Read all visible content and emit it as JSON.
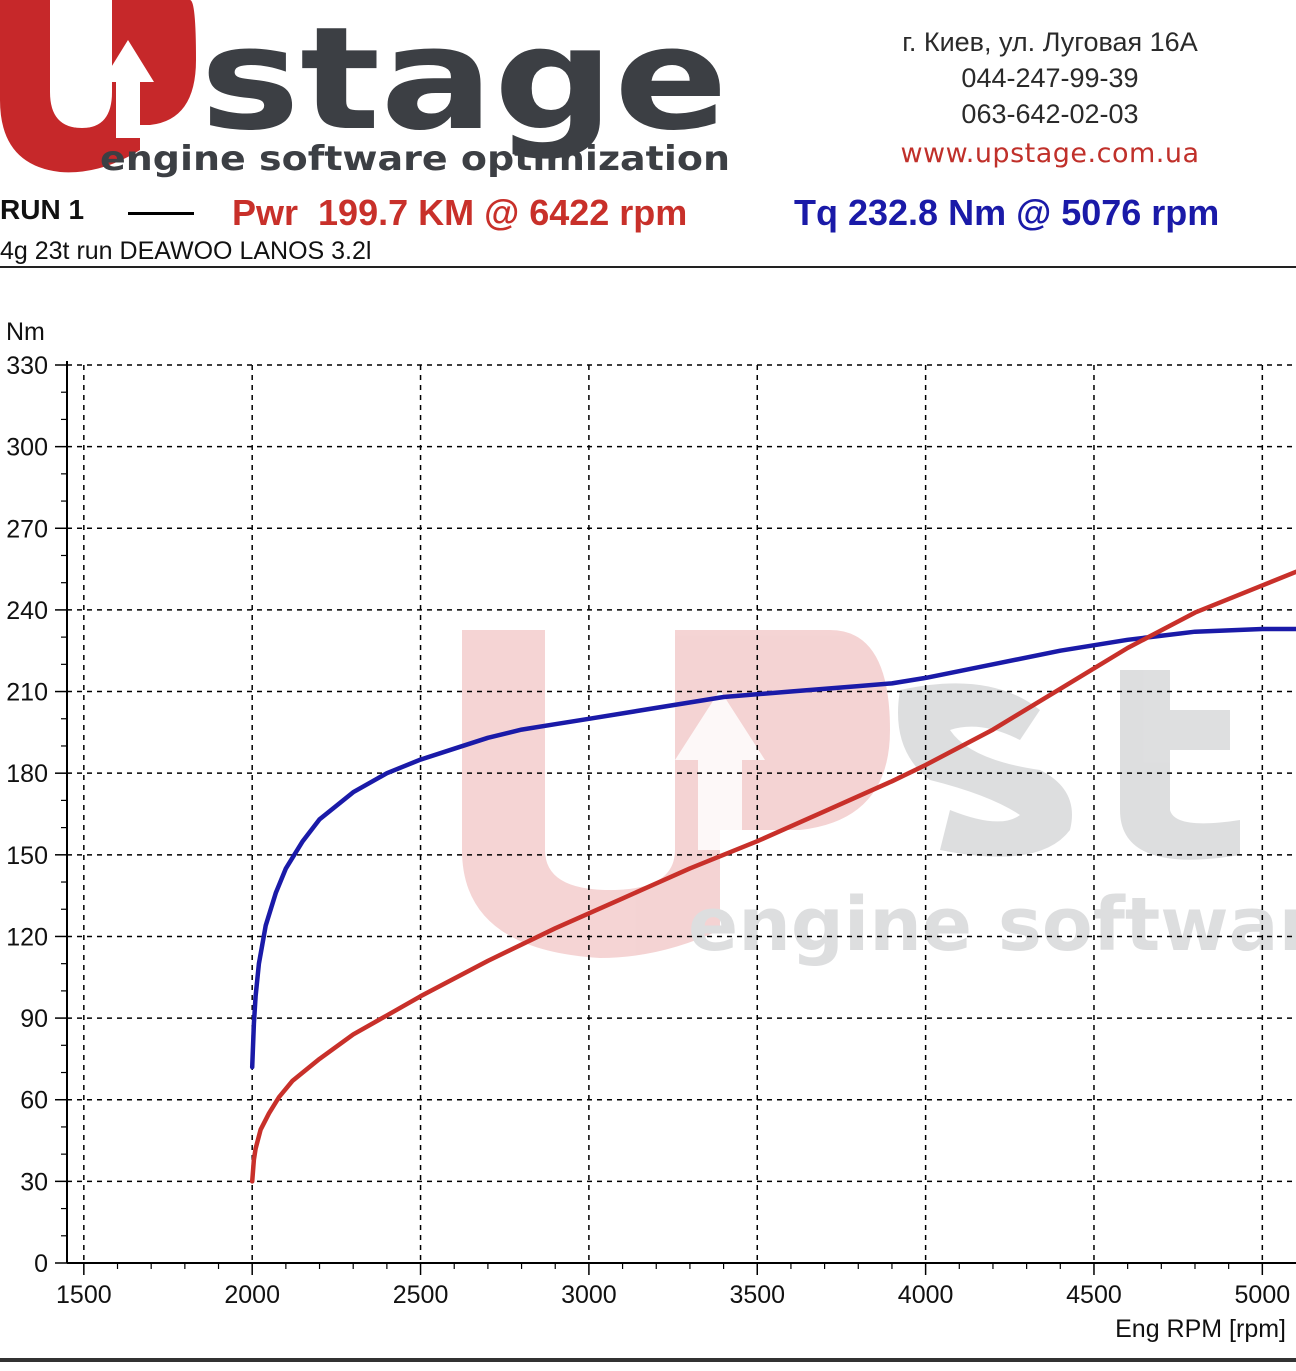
{
  "logo": {
    "brand_word": "stage",
    "tagline": "engine software optimization",
    "colors": {
      "brand_red": "#c6282a",
      "brand_gray": "#3c3f44"
    }
  },
  "contact": {
    "address": "г. Киев, ул. Луговая 16А",
    "phone1": "044-247-99-39",
    "phone2": "063-642-02-03",
    "website": "www.upstage.com.ua"
  },
  "run": {
    "label": "RUN 1",
    "power_summary": "Pwr  199.7 KM @ 6422 rpm",
    "torque_summary": "Tq 232.8 Nm @ 5076 rpm",
    "description": "4g 23t run DEAWOO LANOS 3.2l"
  },
  "chart_data": {
    "type": "line",
    "ylabel": "Nm",
    "xlabel": "Eng RPM [rpm]",
    "xlim": [
      1450,
      5100
    ],
    "ylim": [
      0,
      330
    ],
    "x_ticks": [
      1500,
      2000,
      2500,
      3000,
      3500,
      4000,
      4500,
      5000
    ],
    "y_ticks": [
      0,
      30,
      60,
      90,
      120,
      150,
      180,
      210,
      240,
      270,
      300,
      330
    ],
    "grid": true,
    "watermark": {
      "tagline": "engine software"
    },
    "series": [
      {
        "color": "#1a1aa8",
        "x": [
          2000,
          2005,
          2010,
          2020,
          2040,
          2070,
          2100,
          2150,
          2200,
          2300,
          2400,
          2500,
          2600,
          2700,
          2800,
          2900,
          3000,
          3200,
          3400,
          3600,
          3800,
          3900,
          4000,
          4200,
          4400,
          4600,
          4800,
          5000,
          5100
        ],
        "y": [
          72,
          88,
          98,
          110,
          124,
          136,
          145,
          155,
          163,
          173,
          180,
          185,
          189,
          193,
          196,
          198,
          200,
          204,
          208,
          210,
          212,
          213,
          215,
          220,
          225,
          229,
          232,
          233,
          233
        ]
      },
      {
        "color": "#c8302a",
        "x": [
          2000,
          2005,
          2010,
          2025,
          2050,
          2080,
          2120,
          2200,
          2300,
          2400,
          2500,
          2700,
          2900,
          3100,
          3300,
          3500,
          3700,
          3900,
          4000,
          4200,
          4400,
          4600,
          4800,
          5000,
          5100
        ],
        "y": [
          30,
          38,
          42,
          49,
          55,
          61,
          67,
          75,
          84,
          91,
          98,
          111,
          123,
          134,
          145,
          155,
          166,
          177,
          183,
          196,
          211,
          226,
          239,
          249,
          254
        ]
      }
    ]
  }
}
